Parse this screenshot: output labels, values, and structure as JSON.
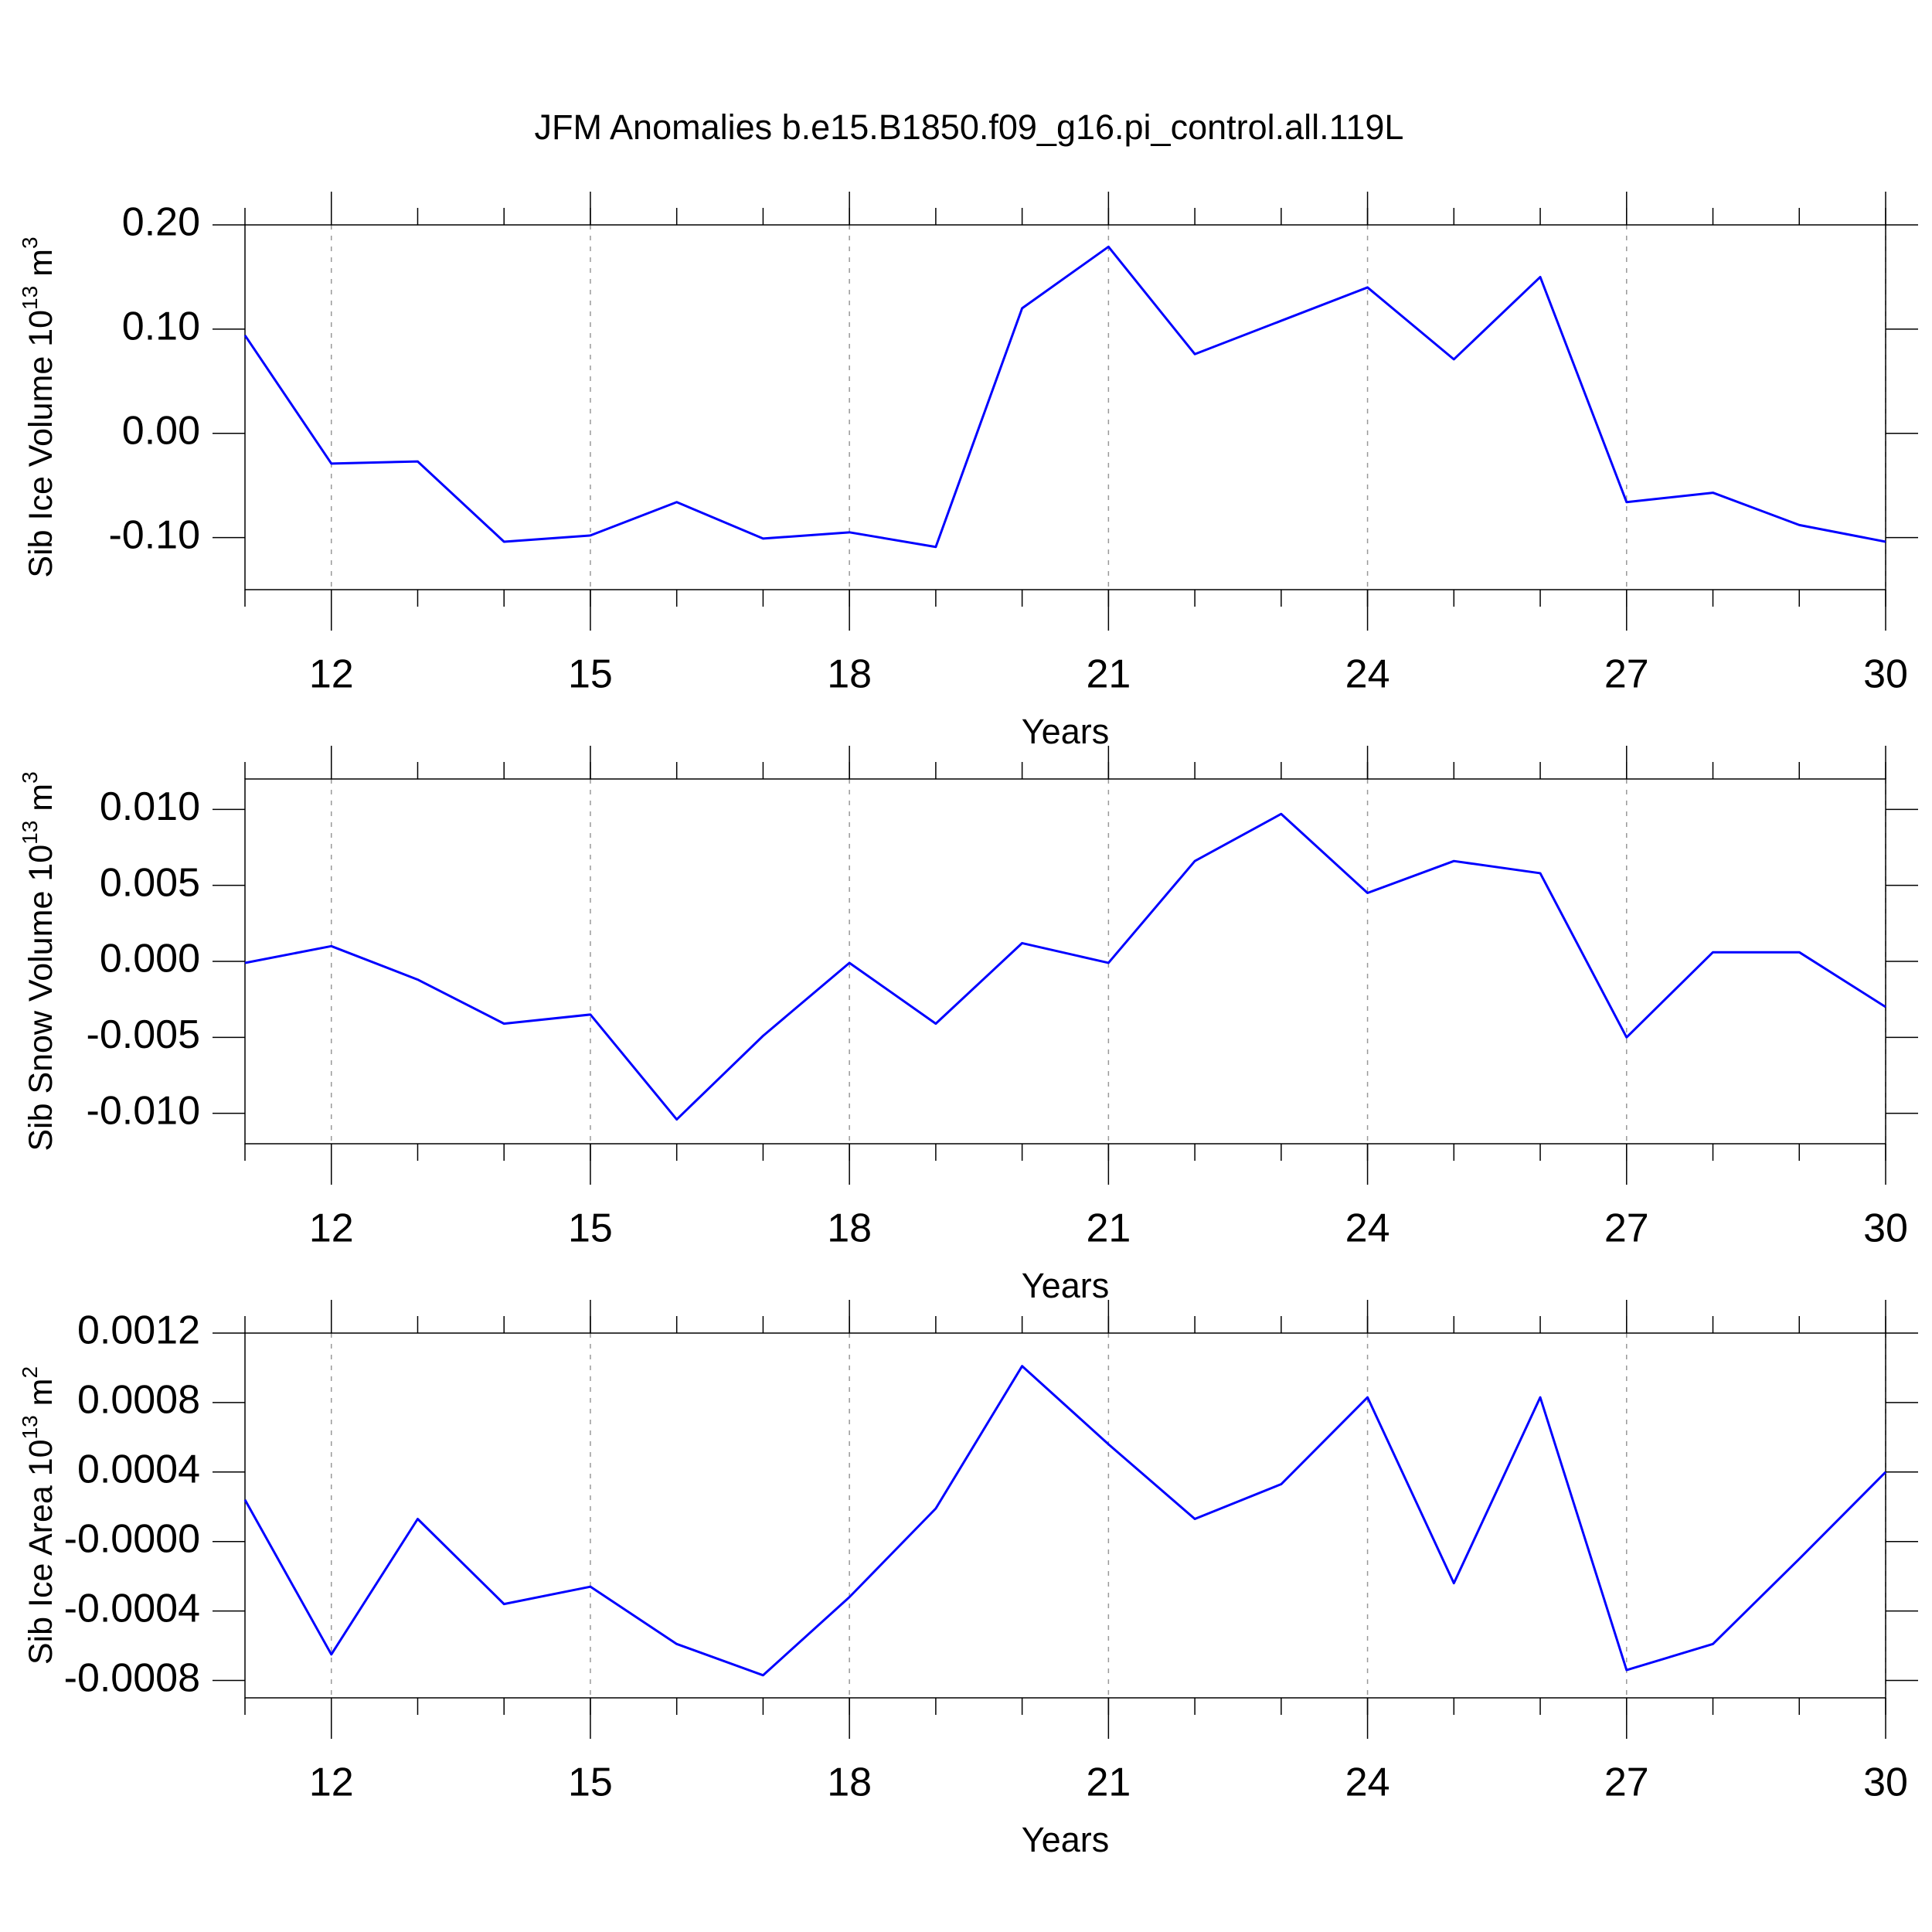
{
  "title": "JFM Anomalies b.e15.B1850.f09_g16.pi_control.all.119L",
  "chart_data": [
    {
      "type": "line",
      "xlabel": "Years",
      "ylabel": [
        "Sib Ice Volume 10",
        "13",
        " m",
        "3"
      ],
      "x": [
        11,
        12,
        13,
        14,
        15,
        16,
        17,
        18,
        19,
        20,
        21,
        22,
        23,
        24,
        25,
        26,
        27,
        28,
        29,
        30
      ],
      "series": [
        {
          "color": "#0000ff",
          "values": [
            0.094,
            -0.029,
            -0.027,
            -0.104,
            -0.098,
            -0.066,
            -0.101,
            -0.095,
            -0.109,
            0.12,
            0.179,
            0.076,
            0.108,
            0.14,
            0.071,
            0.15,
            -0.066,
            -0.057,
            -0.088,
            -0.104
          ]
        }
      ],
      "xlim": [
        11,
        30
      ],
      "xticks": [
        12,
        15,
        18,
        21,
        24,
        27,
        30
      ],
      "ylim": [
        -0.15,
        0.2
      ],
      "yticks": [
        {
          "value": -0.1,
          "label": "-0.10"
        },
        {
          "value": 0,
          "label": "0.00"
        },
        {
          "value": 0.1,
          "label": "0.10"
        },
        {
          "value": 0.2,
          "label": "0.20"
        }
      ]
    },
    {
      "type": "line",
      "xlabel": "Years",
      "ylabel": [
        "Sib Snow Volume 10",
        "13",
        " m",
        "3"
      ],
      "x": [
        11,
        12,
        13,
        14,
        15,
        16,
        17,
        18,
        19,
        20,
        21,
        22,
        23,
        24,
        25,
        26,
        27,
        28,
        29,
        30
      ],
      "series": [
        {
          "color": "#0000ff",
          "values": [
            -0.0001,
            0.001,
            -0.0012,
            -0.0041,
            -0.0035,
            -0.0104,
            -0.0049,
            -0.0001,
            -0.0041,
            0.0012,
            -0.0001,
            0.0066,
            0.0097,
            0.0045,
            0.0066,
            0.0058,
            -0.005,
            0.0006,
            0.0006,
            -0.003
          ]
        }
      ],
      "xlim": [
        11,
        30
      ],
      "xticks": [
        12,
        15,
        18,
        21,
        24,
        27,
        30
      ],
      "ylim": [
        -0.012,
        0.012
      ],
      "yticks": [
        {
          "value": -0.01,
          "label": "-0.010"
        },
        {
          "value": -0.005,
          "label": "-0.005"
        },
        {
          "value": 0,
          "label": "0.000"
        },
        {
          "value": 0.005,
          "label": "0.005"
        },
        {
          "value": 0.01,
          "label": "0.010"
        }
      ]
    },
    {
      "type": "line",
      "xlabel": "Years",
      "ylabel": [
        "Sib Ice Area 10",
        "13",
        " m",
        "2"
      ],
      "x": [
        11,
        12,
        13,
        14,
        15,
        16,
        17,
        18,
        19,
        20,
        21,
        22,
        23,
        24,
        25,
        26,
        27,
        28,
        29,
        30
      ],
      "series": [
        {
          "color": "#0000ff",
          "values": [
            0.00024,
            -0.00065,
            0.00013,
            -0.00036,
            -0.00026,
            -0.00059,
            -0.00077,
            -0.00032,
            0.00019,
            0.00101,
            0.00056,
            0.00013,
            0.00033,
            0.00083,
            -0.00024,
            0.00083,
            -0.00074,
            -0.00059,
            -0.0001,
            0.0004
          ]
        }
      ],
      "xlim": [
        11,
        30
      ],
      "xticks": [
        12,
        15,
        18,
        21,
        24,
        27,
        30
      ],
      "ylim": [
        -0.0009,
        0.0012
      ],
      "yticks": [
        -0.0008,
        -0.0004,
        {
          "value": 0,
          "label": "-0.0000"
        },
        0.0004,
        0.0008,
        0.0012
      ]
    }
  ]
}
